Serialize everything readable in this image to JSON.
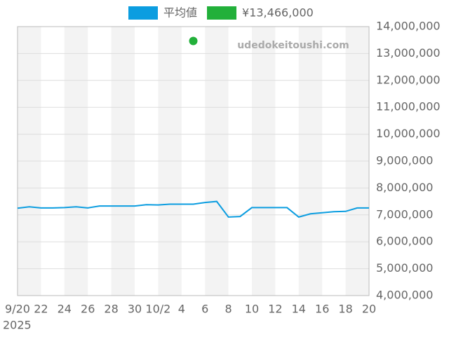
{
  "chart_data": {
    "type": "line",
    "watermark": "udedokeitoushi.com",
    "categories": [
      "9/20",
      null,
      "22",
      null,
      "24",
      null,
      "26",
      null,
      "28",
      null,
      "30",
      null,
      "10/2",
      null,
      "4",
      null,
      "6",
      null,
      "8",
      null,
      "10",
      null,
      "12",
      null,
      "14",
      null,
      "16",
      null,
      "18",
      null,
      "20"
    ],
    "x_sublabel": "2025",
    "series": [
      {
        "name": "平均値",
        "color": "#0b9de0",
        "values": [
          7250000,
          7300000,
          7260000,
          7260000,
          7270000,
          7300000,
          7260000,
          7330000,
          7330000,
          7330000,
          7330000,
          7380000,
          7370000,
          7400000,
          7400000,
          7400000,
          7460000,
          7500000,
          6920000,
          6940000,
          7270000,
          7270000,
          7270000,
          7270000,
          6920000,
          7040000,
          7080000,
          7120000,
          7130000,
          7260000,
          7260000
        ]
      },
      {
        "name": "¥13,466,000",
        "color": "#22b03a",
        "values": [
          null,
          null,
          null,
          null,
          null,
          null,
          null,
          null,
          null,
          null,
          null,
          null,
          null,
          null,
          null,
          13466000,
          null,
          null,
          null,
          null,
          null,
          null,
          null,
          null,
          null,
          null,
          null,
          null,
          null,
          null,
          null
        ]
      }
    ],
    "ylim": [
      4000000,
      14000000
    ],
    "yticks": [
      {
        "value": 4000000,
        "label": "4,000,000"
      },
      {
        "value": 5000000,
        "label": "5,000,000"
      },
      {
        "value": 6000000,
        "label": "6,000,000"
      },
      {
        "value": 7000000,
        "label": "7,000,000"
      },
      {
        "value": 8000000,
        "label": "8,000,000"
      },
      {
        "value": 9000000,
        "label": "9,000,000"
      },
      {
        "value": 10000000,
        "label": "10,000,000"
      },
      {
        "value": 11000000,
        "label": "11,000,000"
      },
      {
        "value": 12000000,
        "label": "12,000,000"
      },
      {
        "value": 13000000,
        "label": "13,000,000"
      },
      {
        "value": 14000000,
        "label": "14,000,000"
      }
    ],
    "grid": true
  }
}
